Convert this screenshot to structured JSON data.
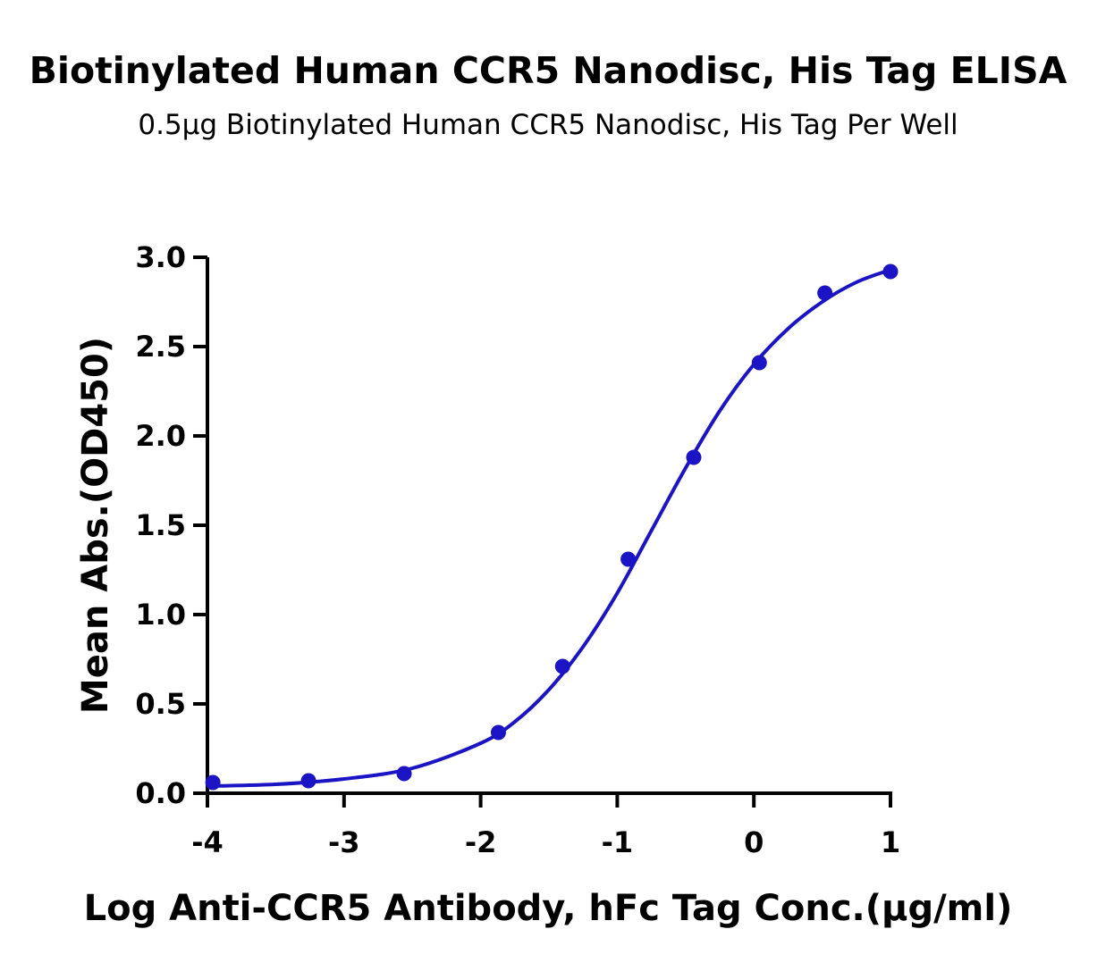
{
  "chart_data": {
    "type": "scatter",
    "title": "Biotinylated Human CCR5 Nanodisc, His Tag ELISA",
    "subtitle": "0.5µg Biotinylated Human CCR5 Nanodisc, His Tag Per Well",
    "xlabel": "Log  Anti-CCR5 Antibody, hFc Tag Conc.(µg/ml)",
    "ylabel": "Mean Abs.(OD450)",
    "xlim": [
      -4,
      1
    ],
    "ylim": [
      0,
      3.0
    ],
    "xticks": [
      "-4",
      "-3",
      "-2",
      "-1",
      "0",
      "1"
    ],
    "yticks": [
      "0.0",
      "0.5",
      "1.0",
      "1.5",
      "2.0",
      "2.5",
      "3.0"
    ],
    "grid": false,
    "colors": {
      "series": "#1a14c4",
      "axis": "#000000"
    },
    "series": [
      {
        "points": [
          {
            "x": -3.96,
            "y": 0.06
          },
          {
            "x": -3.26,
            "y": 0.07
          },
          {
            "x": -2.56,
            "y": 0.11
          },
          {
            "x": -1.87,
            "y": 0.34
          },
          {
            "x": -1.4,
            "y": 0.71
          },
          {
            "x": -0.92,
            "y": 1.31
          },
          {
            "x": -0.44,
            "y": 1.88
          },
          {
            "x": 0.04,
            "y": 2.41
          },
          {
            "x": 0.52,
            "y": 2.8
          },
          {
            "x": 1.0,
            "y": 2.92
          }
        ],
        "fit": {
          "x": [
            -4.0,
            -3.5,
            -3.0,
            -2.5,
            -2.0,
            -1.75,
            -1.5,
            -1.25,
            -1.0,
            -0.75,
            -0.5,
            -0.25,
            0.0,
            0.25,
            0.5,
            0.75,
            1.0
          ],
          "y": [
            0.04,
            0.05,
            0.08,
            0.14,
            0.28,
            0.4,
            0.58,
            0.82,
            1.12,
            1.47,
            1.82,
            2.14,
            2.4,
            2.6,
            2.75,
            2.86,
            2.93
          ]
        }
      }
    ]
  }
}
